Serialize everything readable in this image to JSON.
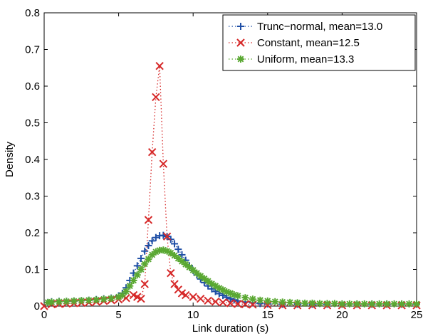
{
  "chart_data": {
    "type": "line",
    "title": "",
    "xlabel": "Link duration (s)",
    "ylabel": "Density",
    "xlim": [
      0,
      25
    ],
    "ylim": [
      0,
      0.8
    ],
    "xticks": [
      0,
      5,
      10,
      15,
      20,
      25
    ],
    "yticks": [
      0,
      0.1,
      0.2,
      0.3,
      0.4,
      0.5,
      0.6,
      0.7,
      0.8
    ],
    "legend_position": "top-right",
    "grid": false,
    "series": [
      {
        "name": "Trunc−normal, mean=13.0",
        "color": "#1f4fa6",
        "marker": "plus",
        "line_style": "dotted",
        "points": [
          [
            0.25,
            0.01
          ],
          [
            0.5,
            0.012
          ],
          [
            1.0,
            0.013
          ],
          [
            1.5,
            0.013
          ],
          [
            2.0,
            0.014
          ],
          [
            2.5,
            0.015
          ],
          [
            3.0,
            0.016
          ],
          [
            3.5,
            0.018
          ],
          [
            4.0,
            0.02
          ],
          [
            4.5,
            0.022
          ],
          [
            5.0,
            0.028
          ],
          [
            5.25,
            0.035
          ],
          [
            5.5,
            0.05
          ],
          [
            5.75,
            0.07
          ],
          [
            6.0,
            0.09
          ],
          [
            6.25,
            0.11
          ],
          [
            6.5,
            0.13
          ],
          [
            6.75,
            0.15
          ],
          [
            7.0,
            0.165
          ],
          [
            7.25,
            0.178
          ],
          [
            7.5,
            0.187
          ],
          [
            7.75,
            0.192
          ],
          [
            8.0,
            0.193
          ],
          [
            8.25,
            0.19
          ],
          [
            8.5,
            0.182
          ],
          [
            8.75,
            0.17
          ],
          [
            9.0,
            0.155
          ],
          [
            9.25,
            0.14
          ],
          [
            9.5,
            0.125
          ],
          [
            9.75,
            0.11
          ],
          [
            10.0,
            0.097
          ],
          [
            10.25,
            0.085
          ],
          [
            10.5,
            0.074
          ],
          [
            10.75,
            0.064
          ],
          [
            11.0,
            0.055
          ],
          [
            11.25,
            0.047
          ],
          [
            11.5,
            0.04
          ],
          [
            11.75,
            0.034
          ],
          [
            12.0,
            0.029
          ],
          [
            12.25,
            0.024
          ],
          [
            12.5,
            0.02
          ],
          [
            12.75,
            0.017
          ],
          [
            13.0,
            0.014
          ],
          [
            13.5,
            0.011
          ],
          [
            14.0,
            0.009
          ],
          [
            14.5,
            0.007
          ],
          [
            15.0,
            0.006
          ],
          [
            16.0,
            0.005
          ],
          [
            17.0,
            0.005
          ],
          [
            18.0,
            0.005
          ],
          [
            19.0,
            0.005
          ],
          [
            20.0,
            0.005
          ],
          [
            21.0,
            0.005
          ],
          [
            22.0,
            0.005
          ],
          [
            23.0,
            0.005
          ],
          [
            24.0,
            0.005
          ],
          [
            25.0,
            0.005
          ]
        ]
      },
      {
        "name": "Constant, mean=12.5",
        "color": "#d62828",
        "marker": "x",
        "line_style": "dotted",
        "points": [
          [
            0.0,
            0.0
          ],
          [
            0.5,
            0.005
          ],
          [
            1.0,
            0.006
          ],
          [
            1.5,
            0.007
          ],
          [
            2.0,
            0.008
          ],
          [
            2.5,
            0.009
          ],
          [
            3.0,
            0.01
          ],
          [
            3.5,
            0.012
          ],
          [
            4.0,
            0.014
          ],
          [
            4.5,
            0.016
          ],
          [
            5.0,
            0.018
          ],
          [
            5.5,
            0.022
          ],
          [
            6.0,
            0.03
          ],
          [
            6.25,
            0.025
          ],
          [
            6.5,
            0.02
          ],
          [
            6.75,
            0.06
          ],
          [
            7.0,
            0.235
          ],
          [
            7.25,
            0.42
          ],
          [
            7.5,
            0.57
          ],
          [
            7.75,
            0.655
          ],
          [
            8.0,
            0.388
          ],
          [
            8.25,
            0.19
          ],
          [
            8.5,
            0.09
          ],
          [
            8.75,
            0.06
          ],
          [
            9.0,
            0.045
          ],
          [
            9.25,
            0.035
          ],
          [
            9.5,
            0.03
          ],
          [
            10.0,
            0.025
          ],
          [
            10.5,
            0.02
          ],
          [
            11.0,
            0.015
          ],
          [
            11.5,
            0.012
          ],
          [
            12.0,
            0.01
          ],
          [
            12.5,
            0.008
          ],
          [
            13.0,
            0.006
          ],
          [
            13.5,
            0.005
          ],
          [
            14.0,
            0.004
          ],
          [
            15.0,
            0.003
          ],
          [
            16.0,
            0.002
          ],
          [
            17.0,
            0.002
          ],
          [
            18.0,
            0.002
          ],
          [
            19.0,
            0.002
          ],
          [
            20.0,
            0.002
          ],
          [
            21.0,
            0.002
          ],
          [
            22.0,
            0.002
          ],
          [
            23.0,
            0.002
          ],
          [
            24.0,
            0.002
          ],
          [
            25.0,
            0.002
          ]
        ]
      },
      {
        "name": "Uniform, mean=13.3",
        "color": "#5aa832",
        "marker": "star",
        "line_style": "dotted",
        "points": [
          [
            0.25,
            0.01
          ],
          [
            0.5,
            0.011
          ],
          [
            1.0,
            0.012
          ],
          [
            1.5,
            0.013
          ],
          [
            2.0,
            0.014
          ],
          [
            2.5,
            0.015
          ],
          [
            3.0,
            0.016
          ],
          [
            3.5,
            0.017
          ],
          [
            4.0,
            0.019
          ],
          [
            4.5,
            0.021
          ],
          [
            5.0,
            0.025
          ],
          [
            5.25,
            0.03
          ],
          [
            5.5,
            0.04
          ],
          [
            5.75,
            0.055
          ],
          [
            6.0,
            0.07
          ],
          [
            6.25,
            0.085
          ],
          [
            6.5,
            0.1
          ],
          [
            6.75,
            0.115
          ],
          [
            7.0,
            0.128
          ],
          [
            7.25,
            0.14
          ],
          [
            7.5,
            0.148
          ],
          [
            7.75,
            0.152
          ],
          [
            8.0,
            0.153
          ],
          [
            8.25,
            0.15
          ],
          [
            8.5,
            0.145
          ],
          [
            8.75,
            0.138
          ],
          [
            9.0,
            0.13
          ],
          [
            9.25,
            0.122
          ],
          [
            9.5,
            0.114
          ],
          [
            9.75,
            0.106
          ],
          [
            10.0,
            0.098
          ],
          [
            10.25,
            0.09
          ],
          [
            10.5,
            0.082
          ],
          [
            10.75,
            0.075
          ],
          [
            11.0,
            0.068
          ],
          [
            11.25,
            0.061
          ],
          [
            11.5,
            0.055
          ],
          [
            11.75,
            0.049
          ],
          [
            12.0,
            0.044
          ],
          [
            12.25,
            0.039
          ],
          [
            12.5,
            0.035
          ],
          [
            12.75,
            0.031
          ],
          [
            13.0,
            0.028
          ],
          [
            13.5,
            0.023
          ],
          [
            14.0,
            0.019
          ],
          [
            14.5,
            0.016
          ],
          [
            15.0,
            0.014
          ],
          [
            15.5,
            0.012
          ],
          [
            16.0,
            0.011
          ],
          [
            16.5,
            0.01
          ],
          [
            17.0,
            0.009
          ],
          [
            17.5,
            0.008
          ],
          [
            18.0,
            0.008
          ],
          [
            18.5,
            0.007
          ],
          [
            19.0,
            0.007
          ],
          [
            19.5,
            0.007
          ],
          [
            20.0,
            0.006
          ],
          [
            20.5,
            0.006
          ],
          [
            21.0,
            0.006
          ],
          [
            21.5,
            0.006
          ],
          [
            22.0,
            0.006
          ],
          [
            22.5,
            0.006
          ],
          [
            23.0,
            0.006
          ],
          [
            23.5,
            0.006
          ],
          [
            24.0,
            0.006
          ],
          [
            24.5,
            0.006
          ],
          [
            25.0,
            0.006
          ]
        ]
      }
    ]
  }
}
